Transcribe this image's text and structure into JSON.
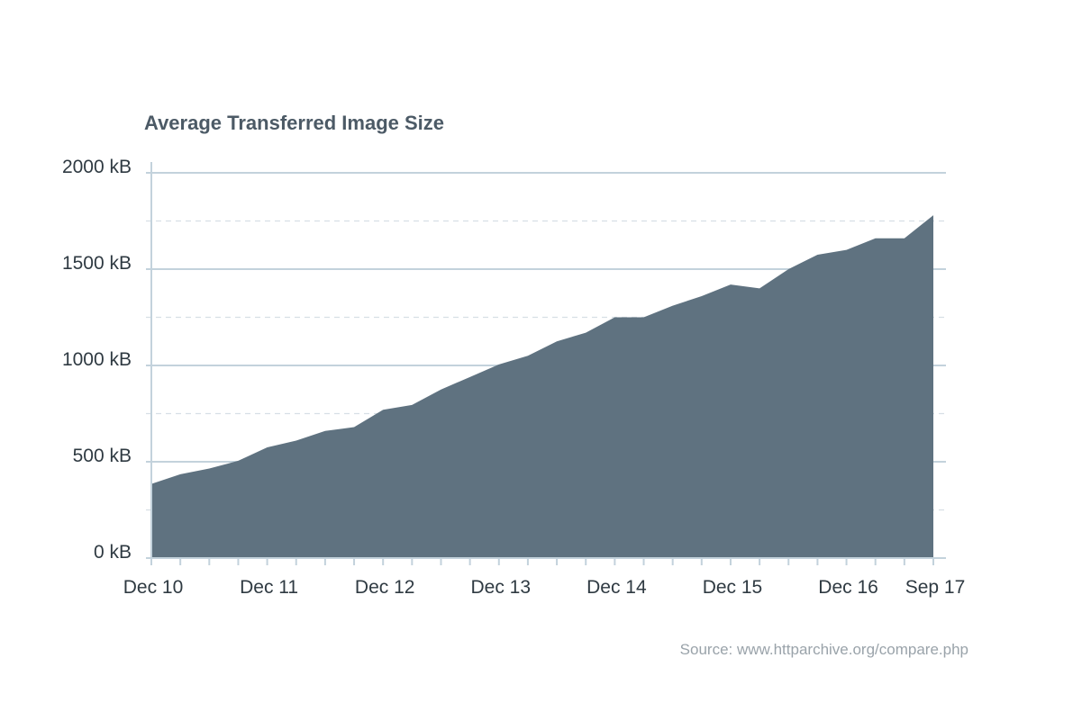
{
  "chart_data": {
    "type": "area",
    "title": "Average Transferred Image Size",
    "xlabel": "",
    "ylabel": "",
    "x_tick_labels": [
      "Dec 10",
      "Dec 11",
      "Dec 12",
      "Dec 13",
      "Dec 14",
      "Dec 15",
      "Dec 16",
      "Sep 17"
    ],
    "y_tick_labels": [
      "2000 kB",
      "1500 kB",
      "1000 kB",
      "500 kB",
      "0 kB"
    ],
    "y_tick_values": [
      2000,
      1500,
      1000,
      500,
      0
    ],
    "ylim": [
      0,
      2000
    ],
    "grid": true,
    "unit": "kB",
    "series": [
      {
        "values": [
          385,
          435,
          465,
          505,
          575,
          610,
          660,
          680,
          770,
          795,
          875,
          940,
          1005,
          1050,
          1125,
          1170,
          1250,
          1250,
          1310,
          1360,
          1420,
          1400,
          1500,
          1575,
          1600,
          1660,
          1660,
          1780
        ]
      }
    ],
    "colors": {
      "area": "#5f7280",
      "grid_major": "#c3d2dc",
      "grid_minor": "#d7dfe5",
      "axis": "#c3d2dc"
    },
    "source": "Source: www.httparchive.org/compare.php"
  }
}
